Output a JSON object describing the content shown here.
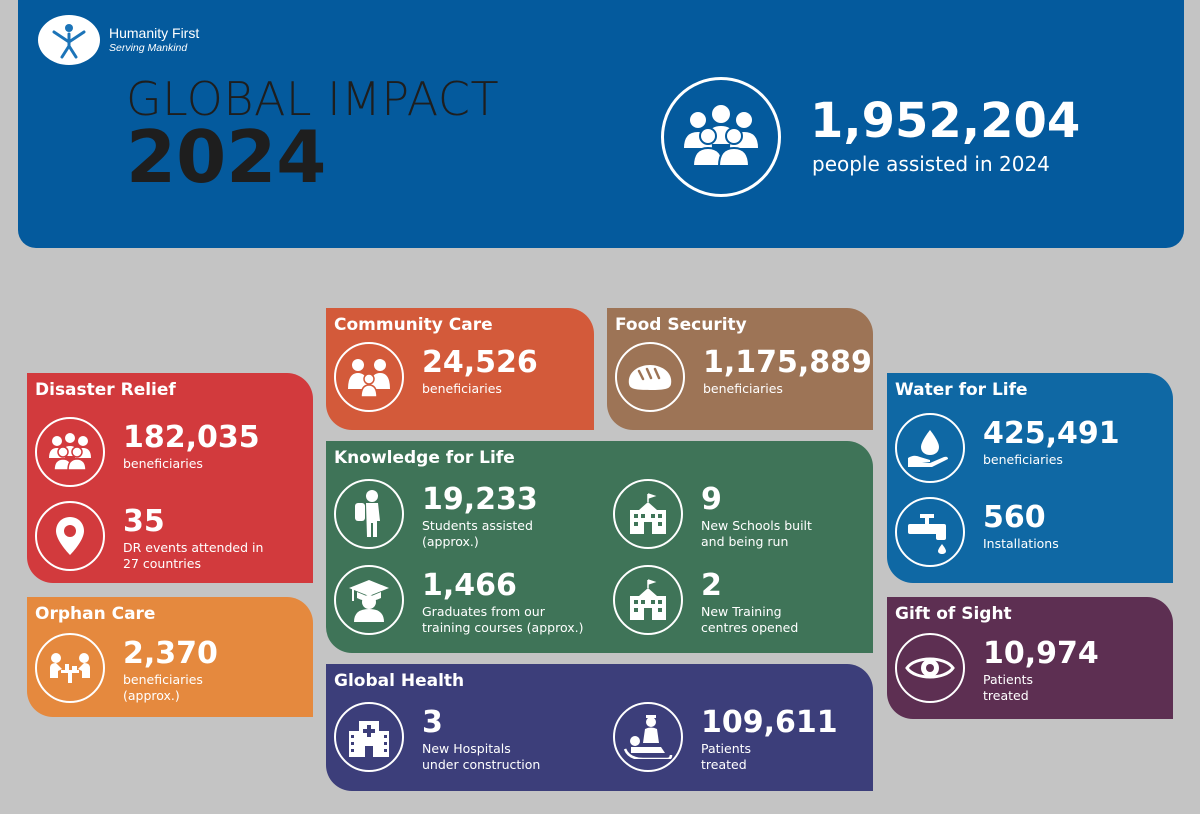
{
  "header": {
    "brand_name": "Humanity First",
    "brand_tagline": "Serving Mankind",
    "title_line1": "GLOBAL IMPACT",
    "title_line2": "2024",
    "total_value": "1,952,204",
    "total_label": "people assisted in 2024",
    "icon": "people-group-icon"
  },
  "colors": {
    "header_bg": "#045a9d",
    "page_bg": "#c4c4c4",
    "disaster_relief": "#d23a3d",
    "orphan_care": "#e5893e",
    "community_care": "#d35a3a",
    "food_security": "#9d7456",
    "knowledge_for_life": "#3f7458",
    "global_health": "#3c3e7a",
    "water_for_life": "#0f68a4",
    "gift_of_sight": "#5d2f52"
  },
  "disaster_relief": {
    "title": "Disaster Relief",
    "stats": [
      {
        "value": "182,035",
        "label": "beneficiaries",
        "icon": "people-group-icon"
      },
      {
        "value": "35",
        "label": "DR events attended in\n27 countries",
        "icon": "location-pin-icon"
      }
    ]
  },
  "orphan_care": {
    "title": "Orphan Care",
    "stats": [
      {
        "value": "2,370",
        "label": "beneficiaries\n(approx.)",
        "icon": "children-table-icon"
      }
    ]
  },
  "community_care": {
    "title": "Community Care",
    "stats": [
      {
        "value": "24,526",
        "label": "beneficiaries",
        "icon": "family-icon"
      }
    ]
  },
  "food_security": {
    "title": "Food Security",
    "stats": [
      {
        "value": "1,175,889",
        "label": "beneficiaries",
        "icon": "bread-icon"
      }
    ]
  },
  "knowledge_for_life": {
    "title": "Knowledge for Life",
    "stats": [
      {
        "value": "19,233",
        "label": "Students assisted\n(approx.)",
        "icon": "student-backpack-icon"
      },
      {
        "value": "9",
        "label": "New Schools built\nand being run",
        "icon": "school-building-icon"
      },
      {
        "value": "1,466",
        "label": "Graduates from our\ntraining courses (approx.)",
        "icon": "graduate-icon"
      },
      {
        "value": "2",
        "label": "New Training\ncentres opened",
        "icon": "school-building-icon"
      }
    ]
  },
  "global_health": {
    "title": "Global Health",
    "stats": [
      {
        "value": "3",
        "label": "New Hospitals\nunder construction",
        "icon": "hospital-icon"
      },
      {
        "value": "109,611",
        "label": "Patients\ntreated",
        "icon": "doctor-patient-icon"
      }
    ]
  },
  "water_for_life": {
    "title": "Water for Life",
    "stats": [
      {
        "value": "425,491",
        "label": "beneficiaries",
        "icon": "water-drop-hand-icon"
      },
      {
        "value": "560",
        "label": "Installations",
        "icon": "water-tap-icon"
      }
    ]
  },
  "gift_of_sight": {
    "title": "Gift of Sight",
    "stats": [
      {
        "value": "10,974",
        "label": "Patients\ntreated",
        "icon": "eye-icon"
      }
    ]
  }
}
